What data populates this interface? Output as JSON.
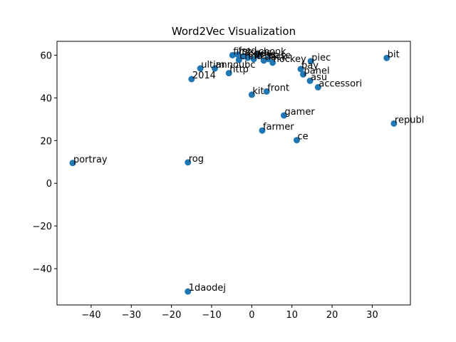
{
  "chart_data": {
    "type": "scatter",
    "title": "Word2Vec Visualization",
    "xlabel": "",
    "ylabel": "",
    "xlim": [
      -48.5,
      39.5
    ],
    "ylim": [
      -57.0,
      66.5
    ],
    "xticks": [
      -40,
      -30,
      -20,
      -10,
      0,
      10,
      20,
      30
    ],
    "yticks": [
      -40,
      -20,
      0,
      20,
      40,
      60
    ],
    "grid": false,
    "marker_color": "#1f77b4",
    "points": [
      {
        "label": "portray",
        "x": -44.6,
        "y": 9.5
      },
      {
        "label": "rog",
        "x": -15.9,
        "y": 9.8
      },
      {
        "label": "1daodej",
        "x": -15.9,
        "y": -50.7
      },
      {
        "label": "2014",
        "x": -15.0,
        "y": 48.8
      },
      {
        "label": "ultim",
        "x": -12.8,
        "y": 53.8
      },
      {
        "label": "annoubc",
        "x": -9.2,
        "y": 53.8
      },
      {
        "label": "http",
        "x": -5.7,
        "y": 51.6
      },
      {
        "label": "first",
        "x": -4.8,
        "y": 60.0
      },
      {
        "label": "fred",
        "x": -3.5,
        "y": 60.3
      },
      {
        "label": "cnnd",
        "x": -3.2,
        "y": 57.8
      },
      {
        "label": "aspec",
        "x": -2.0,
        "y": 59.5
      },
      {
        "label": "cuche",
        "x": -1.0,
        "y": 58.8
      },
      {
        "label": "flesc",
        "x": 0.5,
        "y": 58.2
      },
      {
        "label": "chook",
        "x": 1.5,
        "y": 60.0
      },
      {
        "label": "tlack",
        "x": 3.0,
        "y": 57.5
      },
      {
        "label": "base",
        "x": 4.1,
        "y": 58.2
      },
      {
        "label": "hockey",
        "x": 5.2,
        "y": 56.5
      },
      {
        "label": "kit",
        "x": 0.0,
        "y": 41.5
      },
      {
        "label": "front",
        "x": 3.7,
        "y": 43.0
      },
      {
        "label": "gamer",
        "x": 8.0,
        "y": 31.8
      },
      {
        "label": "farmer",
        "x": 2.6,
        "y": 24.7
      },
      {
        "label": "ce",
        "x": 11.2,
        "y": 20.2
      },
      {
        "label": "piec",
        "x": 14.7,
        "y": 57.2
      },
      {
        "label": "bay",
        "x": 12.2,
        "y": 53.5
      },
      {
        "label": "panel",
        "x": 12.8,
        "y": 51.0
      },
      {
        "label": "asu",
        "x": 14.5,
        "y": 48.0
      },
      {
        "label": "accessori",
        "x": 16.5,
        "y": 45.0
      },
      {
        "label": "bit",
        "x": 33.6,
        "y": 58.7
      },
      {
        "label": "republ",
        "x": 35.4,
        "y": 28.0
      }
    ]
  }
}
